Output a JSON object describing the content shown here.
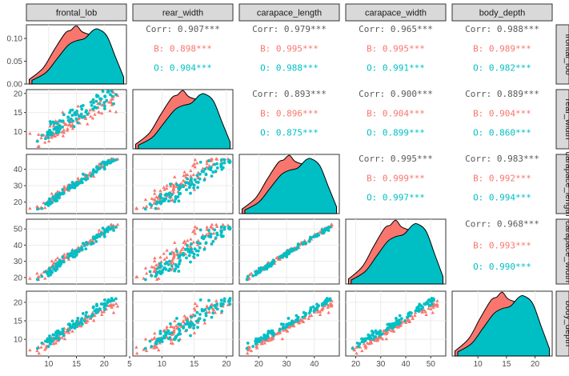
{
  "chart_data": {
    "type": "scatter-matrix",
    "variables": [
      "frontal_lob",
      "rear_width",
      "carapace_length",
      "carapace_width",
      "body_depth"
    ],
    "groups": [
      {
        "name": "B",
        "color": "#F8766D"
      },
      {
        "name": "O",
        "color": "#00BFC4"
      }
    ],
    "correlations": [
      {
        "row": 0,
        "col": 1,
        "overall": "0.907***",
        "B": "0.898***",
        "O": "0.904***"
      },
      {
        "row": 0,
        "col": 2,
        "overall": "0.979***",
        "B": "0.995***",
        "O": "0.988***"
      },
      {
        "row": 0,
        "col": 3,
        "overall": "0.965***",
        "B": "0.995***",
        "O": "0.991***"
      },
      {
        "row": 0,
        "col": 4,
        "overall": "0.988***",
        "B": "0.989***",
        "O": "0.982***"
      },
      {
        "row": 1,
        "col": 2,
        "overall": "0.893***",
        "B": "0.896***",
        "O": "0.875***"
      },
      {
        "row": 1,
        "col": 3,
        "overall": "0.900***",
        "B": "0.904***",
        "O": "0.899***"
      },
      {
        "row": 1,
        "col": 4,
        "overall": "0.889***",
        "B": "0.904***",
        "O": "0.860***"
      },
      {
        "row": 2,
        "col": 3,
        "overall": "0.995***",
        "B": "0.999***",
        "O": "0.997***"
      },
      {
        "row": 2,
        "col": 4,
        "overall": "0.983***",
        "B": "0.992***",
        "O": "0.994***"
      },
      {
        "row": 3,
        "col": 4,
        "overall": "0.968***",
        "B": "0.993***",
        "O": "0.990***"
      }
    ],
    "corr_label": "Corr: ",
    "ranges": {
      "frontal_lob": [
        6,
        24
      ],
      "rear_width": [
        5.5,
        21
      ],
      "carapace_length": [
        13,
        49
      ],
      "carapace_width": [
        16,
        56
      ],
      "body_depth": [
        5.5,
        23
      ]
    },
    "x_ticks": {
      "frontal_lob": [
        10,
        15,
        20
      ],
      "rear_width": [
        5,
        10,
        15,
        20
      ],
      "carapace_length": [
        20,
        30,
        40
      ],
      "carapace_width": [
        20,
        30,
        40,
        50
      ],
      "body_depth": [
        10,
        15,
        20
      ]
    },
    "y_ticks": {
      "rear_width": [
        10,
        15,
        20
      ],
      "carapace_length": [
        20,
        30,
        40
      ],
      "carapace_width": [
        20,
        30,
        40,
        50
      ],
      "body_depth": [
        10,
        15,
        20
      ]
    },
    "x_tick_labels": {
      "frontal_lob": [
        "10",
        "15",
        "20"
      ],
      "rear_width": [
        "5",
        "10",
        "15",
        "20"
      ],
      "carapace_length": [
        "20",
        "30",
        "40"
      ],
      "carapace_width": [
        "20",
        "30",
        "40",
        "50"
      ],
      "body_depth": [
        "10",
        "15",
        "20"
      ]
    },
    "y_tick_labels": {
      "rear_width": [
        "10",
        "15",
        "20"
      ],
      "carapace_length": [
        "20",
        "30",
        "40"
      ],
      "carapace_width": [
        "20",
        "30",
        "40",
        "50"
      ],
      "body_depth": [
        "10",
        "15",
        "20"
      ]
    },
    "density_axis": {
      "range": [
        0,
        0.13
      ],
      "ticks": [
        0.0,
        0.05,
        0.1
      ],
      "labels": [
        "0.00",
        "0.05",
        "0.10"
      ]
    },
    "grid": true,
    "legend": "none"
  }
}
